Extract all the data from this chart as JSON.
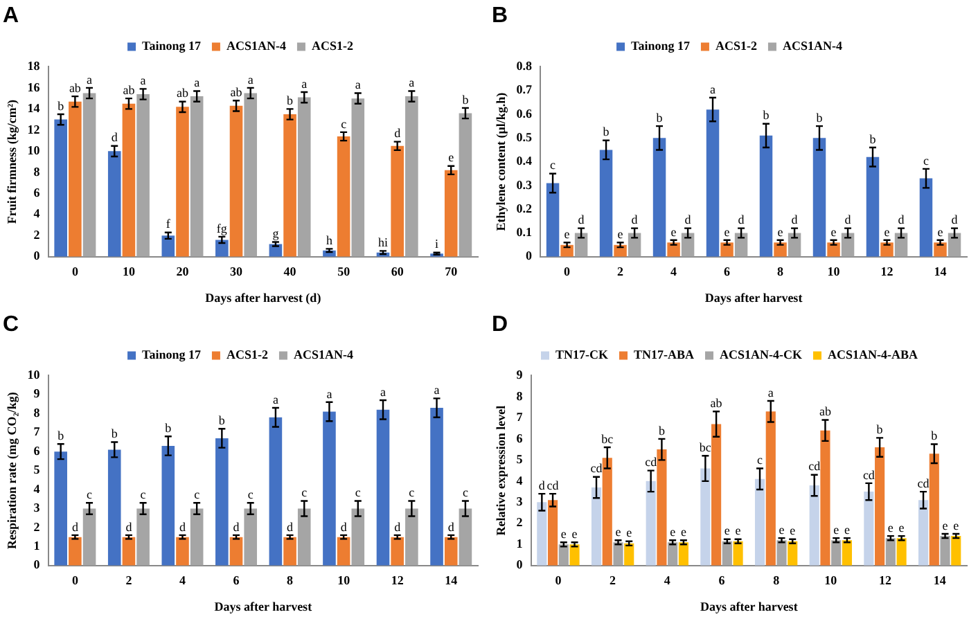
{
  "chart_data": [
    {
      "type": "bar",
      "title": "A",
      "xlabel": "Days after harvest (d)",
      "ylabel": "Fruit firmness (kg/cm²)",
      "categories": [
        "0",
        "10",
        "20",
        "30",
        "40",
        "50",
        "60",
        "70"
      ],
      "ylim": [
        0,
        18
      ],
      "yticks": [
        0,
        2,
        4,
        6,
        8,
        10,
        12,
        14,
        16,
        18
      ],
      "grid": false,
      "legend": "top",
      "series": [
        {
          "name": "Tainong 17",
          "color": "#4472c4",
          "values": [
            13,
            10,
            2,
            1.6,
            1.2,
            0.6,
            0.4,
            0.3
          ],
          "errors": [
            0.5,
            0.5,
            0.3,
            0.3,
            0.2,
            0.15,
            0.15,
            0.1
          ],
          "value_labels": [
            "b",
            "d",
            "f",
            "fg",
            "g",
            "h",
            "hi",
            "i"
          ]
        },
        {
          "name": "ACS1AN-4",
          "color": "#ed7d31",
          "values": [
            14.7,
            14.5,
            14.2,
            14.3,
            13.5,
            11.4,
            10.5,
            8.2
          ],
          "errors": [
            0.5,
            0.5,
            0.5,
            0.5,
            0.5,
            0.4,
            0.4,
            0.4
          ],
          "value_labels": [
            "ab",
            "ab",
            "ab",
            "ab",
            "b",
            "c",
            "d",
            "e"
          ]
        },
        {
          "name": "ACS1-2",
          "color": "#a5a5a5",
          "values": [
            15.5,
            15.4,
            15.2,
            15.5,
            15.1,
            15,
            15.2,
            13.6
          ],
          "errors": [
            0.5,
            0.5,
            0.5,
            0.5,
            0.5,
            0.5,
            0.5,
            0.5
          ],
          "value_labels": [
            "a",
            "a",
            "a",
            "a",
            "a",
            "a",
            "a",
            "b"
          ]
        }
      ]
    },
    {
      "type": "bar",
      "title": "B",
      "xlabel": "Days after harvest",
      "ylabel": "Ethylene content (μl/kg.h)",
      "categories": [
        "0",
        "2",
        "4",
        "6",
        "8",
        "10",
        "12",
        "14"
      ],
      "ylim": [
        0,
        0.8
      ],
      "yticks": [
        0,
        0.1,
        0.2,
        0.3,
        0.4,
        0.5,
        0.6,
        0.7,
        0.8
      ],
      "grid": false,
      "legend": "top",
      "series": [
        {
          "name": "Tainong 17",
          "color": "#4472c4",
          "values": [
            0.31,
            0.45,
            0.5,
            0.62,
            0.51,
            0.5,
            0.42,
            0.33
          ],
          "errors": [
            0.04,
            0.04,
            0.05,
            0.05,
            0.05,
            0.05,
            0.04,
            0.04
          ],
          "value_labels": [
            "c",
            "b",
            "b",
            "a",
            "b",
            "b",
            "b",
            "c"
          ]
        },
        {
          "name": "ACS1-2",
          "color": "#ed7d31",
          "values": [
            0.05,
            0.05,
            0.06,
            0.06,
            0.06,
            0.06,
            0.06,
            0.06
          ],
          "errors": [
            0.01,
            0.01,
            0.01,
            0.01,
            0.01,
            0.01,
            0.01,
            0.01
          ],
          "value_labels": [
            "e",
            "e",
            "e",
            "e",
            "e",
            "e",
            "e",
            "e"
          ]
        },
        {
          "name": "ACS1AN-4",
          "color": "#a5a5a5",
          "values": [
            0.1,
            0.1,
            0.1,
            0.1,
            0.1,
            0.1,
            0.1,
            0.1
          ],
          "errors": [
            0.02,
            0.02,
            0.02,
            0.02,
            0.02,
            0.02,
            0.02,
            0.02
          ],
          "value_labels": [
            "d",
            "d",
            "d",
            "d",
            "d",
            "d",
            "d",
            "d"
          ]
        }
      ]
    },
    {
      "type": "bar",
      "title": "C",
      "xlabel": "Days after harvest",
      "ylabel": "Respiration rate (mg CO₂/kg)",
      "categories": [
        "0",
        "2",
        "4",
        "6",
        "8",
        "10",
        "12",
        "14"
      ],
      "ylim": [
        0,
        10
      ],
      "yticks": [
        0,
        1,
        2,
        3,
        4,
        5,
        6,
        7,
        8,
        9,
        10
      ],
      "grid": false,
      "legend": "top",
      "series": [
        {
          "name": "Tainong 17",
          "color": "#4472c4",
          "values": [
            6,
            6.1,
            6.3,
            6.7,
            7.8,
            8.1,
            8.2,
            8.3
          ],
          "errors": [
            0.4,
            0.4,
            0.5,
            0.5,
            0.5,
            0.5,
            0.5,
            0.5
          ],
          "value_labels": [
            "b",
            "b",
            "b",
            "b",
            "a",
            "a",
            "a",
            "a"
          ]
        },
        {
          "name": "ACS1-2",
          "color": "#ed7d31",
          "values": [
            1.5,
            1.5,
            1.5,
            1.5,
            1.5,
            1.5,
            1.5,
            1.5
          ],
          "errors": [
            0.1,
            0.1,
            0.1,
            0.1,
            0.1,
            0.1,
            0.1,
            0.1
          ],
          "value_labels": [
            "d",
            "d",
            "d",
            "d",
            "d",
            "d",
            "d",
            "d"
          ]
        },
        {
          "name": "ACS1AN-4",
          "color": "#a5a5a5",
          "values": [
            3,
            3,
            3,
            3,
            3,
            3,
            3,
            3
          ],
          "errors": [
            0.3,
            0.3,
            0.3,
            0.3,
            0.4,
            0.4,
            0.4,
            0.4
          ],
          "value_labels": [
            "c",
            "c",
            "c",
            "c",
            "c",
            "c",
            "c",
            "c"
          ]
        }
      ]
    },
    {
      "type": "bar",
      "title": "D",
      "xlabel": "Days after harvest",
      "ylabel": "Relative expression level",
      "categories": [
        "0",
        "2",
        "4",
        "6",
        "8",
        "10",
        "12",
        "14"
      ],
      "ylim": [
        0,
        9
      ],
      "yticks": [
        0,
        1,
        2,
        3,
        4,
        5,
        6,
        7,
        8,
        9
      ],
      "grid": false,
      "legend": "top",
      "series": [
        {
          "name": "TN17-CK",
          "color": "#c5d3ea",
          "values": [
            3,
            3.7,
            4,
            4.6,
            4.1,
            3.8,
            3.5,
            3.1
          ],
          "errors": [
            0.4,
            0.5,
            0.5,
            0.6,
            0.5,
            0.5,
            0.4,
            0.4
          ],
          "value_labels": [
            "d",
            "cd",
            "cd",
            "bc",
            "c",
            "cd",
            "cd",
            "cd"
          ]
        },
        {
          "name": "TN17-ABA",
          "color": "#ed7d31",
          "values": [
            3.1,
            5.1,
            5.5,
            6.7,
            7.3,
            6.4,
            5.6,
            5.3
          ],
          "errors": [
            0.3,
            0.5,
            0.5,
            0.6,
            0.5,
            0.5,
            0.45,
            0.45
          ],
          "value_labels": [
            "cd",
            "bc",
            "b",
            "ab",
            "a",
            "ab",
            "b",
            "b"
          ]
        },
        {
          "name": "ACS1AN-4-CK",
          "color": "#a5a5a5",
          "values": [
            1,
            1.1,
            1.1,
            1.15,
            1.2,
            1.2,
            1.3,
            1.4
          ],
          "errors": [
            0.1,
            0.1,
            0.1,
            0.1,
            0.1,
            0.1,
            0.1,
            0.1
          ],
          "value_labels": [
            "e",
            "e",
            "e",
            "e",
            "e",
            "e",
            "e",
            "e"
          ]
        },
        {
          "name": "ACS1AN-4-ABA",
          "color": "#ffc000",
          "values": [
            1,
            1.05,
            1.1,
            1.15,
            1.15,
            1.2,
            1.3,
            1.4
          ],
          "errors": [
            0.1,
            0.1,
            0.1,
            0.1,
            0.1,
            0.1,
            0.1,
            0.1
          ],
          "value_labels": [
            "e",
            "e",
            "e",
            "e",
            "e",
            "e",
            "e",
            "e"
          ]
        }
      ]
    }
  ]
}
